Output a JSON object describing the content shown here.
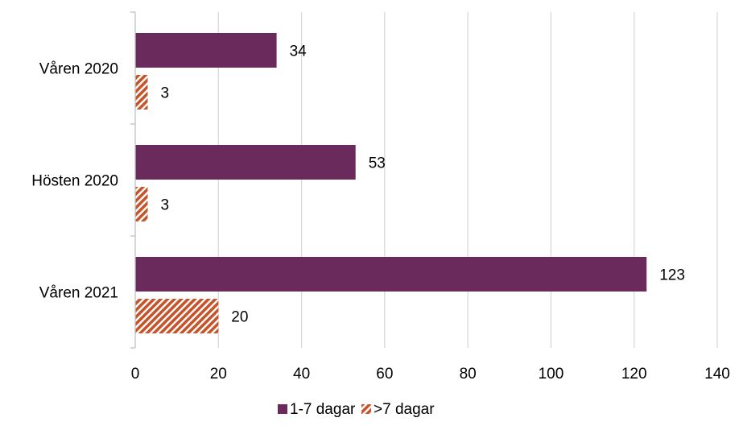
{
  "chart_data": {
    "type": "bar",
    "orientation": "horizontal",
    "categories": [
      "Våren 2020",
      "Hösten 2020",
      "Våren 2021"
    ],
    "series": [
      {
        "name": "1-7 dagar",
        "values": [
          34,
          53,
          123
        ],
        "color": "#6a2a5c",
        "pattern": "solid"
      },
      {
        "name": ">7 dagar",
        "values": [
          3,
          3,
          20
        ],
        "color": "#c5542b",
        "pattern": "diagonal-stripes"
      }
    ],
    "x_ticks": [
      0,
      20,
      40,
      60,
      80,
      100,
      120,
      140
    ],
    "xlim": [
      0,
      140
    ],
    "grid": true,
    "legend_position": "bottom",
    "data_labels": true
  }
}
